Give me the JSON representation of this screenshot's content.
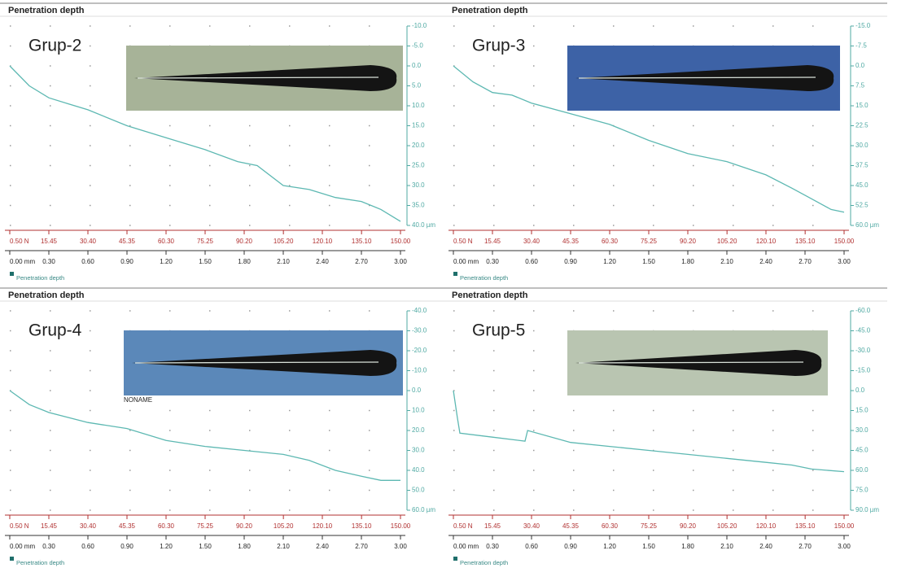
{
  "chart_data": [
    {
      "type": "line",
      "title": "Penetration depth",
      "label": "Grup-2",
      "grid": true,
      "legend": "bottom-left",
      "xlim": [
        0,
        3
      ],
      "xticks": [
        {
          "value": 0,
          "label": "0.00 mm"
        },
        {
          "value": 0.3,
          "label": "0.30"
        },
        {
          "value": 0.6,
          "label": "0.60"
        },
        {
          "value": 0.9,
          "label": "0.90"
        },
        {
          "value": 1.2,
          "label": "1.20"
        },
        {
          "value": 1.5,
          "label": "1.50"
        },
        {
          "value": 1.8,
          "label": "1.80"
        },
        {
          "value": 2.1,
          "label": "2.10"
        },
        {
          "value": 2.4,
          "label": "2.40"
        },
        {
          "value": 2.7,
          "label": "2.70"
        },
        {
          "value": 3,
          "label": "3.00"
        }
      ],
      "x2lim": [
        0.5,
        150
      ],
      "x2ticks": [
        {
          "value": 0.5,
          "label": "0.50 N"
        },
        15.45,
        {
          "value": 30.4,
          "label": "30.40"
        },
        45.35,
        {
          "value": 60.3,
          "label": "60.30"
        },
        75.25,
        {
          "value": 90.2,
          "label": "90.20"
        },
        {
          "value": 105.2,
          "label": "105.20"
        },
        {
          "value": 120.1,
          "label": "120.10"
        },
        {
          "value": 135.1,
          "label": "135.10"
        },
        {
          "value": 150,
          "label": "150.00"
        }
      ],
      "ylim": [
        40,
        -10
      ],
      "yticks": [
        {
          "value": -10,
          "label": "-10.0"
        },
        {
          "value": -5,
          "label": "-5.0"
        },
        {
          "value": 0,
          "label": "0.0"
        },
        {
          "value": 5,
          "label": "5.0"
        },
        {
          "value": 10,
          "label": "10.0"
        },
        {
          "value": 15,
          "label": "15.0"
        },
        {
          "value": 20,
          "label": "20.0"
        },
        {
          "value": 25,
          "label": "25.0"
        },
        {
          "value": 30,
          "label": "30.0"
        },
        {
          "value": 35,
          "label": "35.0"
        },
        {
          "value": 40,
          "label": "40.0 µm"
        }
      ],
      "series": [
        {
          "name": "Penetration depth",
          "color": "#5db8b2",
          "x": [
            0,
            0.15,
            0.3,
            0.45,
            0.6,
            0.9,
            1.2,
            1.5,
            1.75,
            1.9,
            2.1,
            2.3,
            2.5,
            2.7,
            2.85,
            3.0
          ],
          "values": [
            0,
            5,
            8,
            9.5,
            11,
            15,
            18,
            21,
            24,
            25,
            30,
            31,
            33,
            34,
            36,
            39
          ]
        }
      ]
    },
    {
      "type": "line",
      "title": "Penetration depth",
      "label": "Grup-3",
      "grid": true,
      "legend": "bottom-left",
      "xlim": [
        0,
        3
      ],
      "xticks": [
        {
          "value": 0,
          "label": "0.00 mm"
        },
        {
          "value": 0.3,
          "label": "0.30"
        },
        {
          "value": 0.6,
          "label": "0.60"
        },
        {
          "value": 0.9,
          "label": "0.90"
        },
        {
          "value": 1.2,
          "label": "1.20"
        },
        {
          "value": 1.5,
          "label": "1.50"
        },
        {
          "value": 1.8,
          "label": "1.80"
        },
        {
          "value": 2.1,
          "label": "2.10"
        },
        {
          "value": 2.4,
          "label": "2.40"
        },
        {
          "value": 2.7,
          "label": "2.70"
        },
        {
          "value": 3,
          "label": "3.00"
        }
      ],
      "x2lim": [
        0.5,
        150
      ],
      "x2ticks": [
        {
          "value": 0.5,
          "label": "0.50 N"
        },
        15.45,
        {
          "value": 30.4,
          "label": "30.40"
        },
        45.35,
        {
          "value": 60.3,
          "label": "60.30"
        },
        75.25,
        {
          "value": 90.2,
          "label": "90.20"
        },
        {
          "value": 105.2,
          "label": "105.20"
        },
        {
          "value": 120.1,
          "label": "120.10"
        },
        {
          "value": 135.1,
          "label": "135.10"
        },
        {
          "value": 150,
          "label": "150.00"
        }
      ],
      "ylim": [
        60,
        -15
      ],
      "yticks": [
        {
          "value": -15,
          "label": "-15.0"
        },
        -7.5,
        {
          "value": 0,
          "label": "0.0"
        },
        7.5,
        {
          "value": 15,
          "label": "15.0"
        },
        22.5,
        {
          "value": 30,
          "label": "30.0"
        },
        37.5,
        {
          "value": 45,
          "label": "45.0"
        },
        52.5,
        {
          "value": 60,
          "label": "60.0 µm"
        }
      ],
      "series": [
        {
          "name": "Penetration depth",
          "color": "#5db8b2",
          "x": [
            0,
            0.15,
            0.3,
            0.45,
            0.6,
            0.9,
            1.2,
            1.5,
            1.8,
            2.1,
            2.4,
            2.6,
            2.75,
            2.9,
            3.0
          ],
          "values": [
            0,
            6,
            10,
            11,
            14,
            18,
            22,
            28,
            33,
            36,
            41,
            46,
            50,
            54,
            55
          ]
        }
      ]
    },
    {
      "type": "line",
      "title": "Penetration depth",
      "label": "Grup-4",
      "image_caption": "NONAME",
      "grid": true,
      "legend": "bottom-left",
      "xlim": [
        0,
        3
      ],
      "xticks": [
        {
          "value": 0,
          "label": "0.00 mm"
        },
        {
          "value": 0.3,
          "label": "0.30"
        },
        {
          "value": 0.6,
          "label": "0.60"
        },
        {
          "value": 0.9,
          "label": "0.90"
        },
        {
          "value": 1.2,
          "label": "1.20"
        },
        {
          "value": 1.5,
          "label": "1.50"
        },
        {
          "value": 1.8,
          "label": "1.80"
        },
        {
          "value": 2.1,
          "label": "2.10"
        },
        {
          "value": 2.4,
          "label": "2.40"
        },
        {
          "value": 2.7,
          "label": "2.70"
        },
        {
          "value": 3,
          "label": "3.00"
        }
      ],
      "x2lim": [
        0.5,
        150
      ],
      "x2ticks": [
        {
          "value": 0.5,
          "label": "0.50 N"
        },
        15.45,
        {
          "value": 30.4,
          "label": "30.40"
        },
        45.35,
        {
          "value": 60.3,
          "label": "60.30"
        },
        75.25,
        {
          "value": 90.2,
          "label": "90.20"
        },
        {
          "value": 105.2,
          "label": "105.20"
        },
        {
          "value": 120.1,
          "label": "120.10"
        },
        {
          "value": 135.1,
          "label": "135.10"
        },
        {
          "value": 150,
          "label": "150.00"
        }
      ],
      "ylim": [
        60,
        -40
      ],
      "yticks": [
        {
          "value": -40,
          "label": "-40.0"
        },
        {
          "value": -30,
          "label": "-30.0"
        },
        {
          "value": -20,
          "label": "-20.0"
        },
        {
          "value": -10,
          "label": "-10.0"
        },
        {
          "value": 0,
          "label": "0.0"
        },
        {
          "value": 10,
          "label": "10.0"
        },
        {
          "value": 20,
          "label": "20.0"
        },
        {
          "value": 30,
          "label": "30.0"
        },
        {
          "value": 40,
          "label": "40.0"
        },
        {
          "value": 50,
          "label": "50.0"
        },
        {
          "value": 60,
          "label": "60.0 µm"
        }
      ],
      "series": [
        {
          "name": "Penetration depth",
          "color": "#5db8b2",
          "x": [
            0,
            0.15,
            0.3,
            0.6,
            0.9,
            1.2,
            1.5,
            1.8,
            2.1,
            2.3,
            2.5,
            2.7,
            2.85,
            3.0
          ],
          "values": [
            0,
            7,
            11,
            16,
            19,
            25,
            28,
            30,
            32,
            35,
            40,
            43,
            45,
            45
          ]
        }
      ]
    },
    {
      "type": "line",
      "title": "Penetration depth",
      "label": "Grup-5",
      "grid": true,
      "legend": "bottom-left",
      "xlim": [
        0,
        3
      ],
      "xticks": [
        {
          "value": 0,
          "label": "0.00 mm"
        },
        {
          "value": 0.3,
          "label": "0.30"
        },
        {
          "value": 0.6,
          "label": "0.60"
        },
        {
          "value": 0.9,
          "label": "0.90"
        },
        {
          "value": 1.2,
          "label": "1.20"
        },
        {
          "value": 1.5,
          "label": "1.50"
        },
        {
          "value": 1.8,
          "label": "1.80"
        },
        {
          "value": 2.1,
          "label": "2.10"
        },
        {
          "value": 2.4,
          "label": "2.40"
        },
        {
          "value": 2.7,
          "label": "2.70"
        },
        {
          "value": 3,
          "label": "3.00"
        }
      ],
      "x2lim": [
        0.5,
        150
      ],
      "x2ticks": [
        {
          "value": 0.5,
          "label": "0.50 N"
        },
        15.45,
        {
          "value": 30.4,
          "label": "30.40"
        },
        45.35,
        {
          "value": 60.3,
          "label": "60.30"
        },
        75.25,
        {
          "value": 90.2,
          "label": "90.20"
        },
        {
          "value": 105.2,
          "label": "105.20"
        },
        {
          "value": 120.1,
          "label": "120.10"
        },
        {
          "value": 135.1,
          "label": "135.10"
        },
        {
          "value": 150,
          "label": "150.00"
        }
      ],
      "ylim": [
        90,
        -60
      ],
      "yticks": [
        {
          "value": -60,
          "label": "-60.0"
        },
        {
          "value": -45,
          "label": "-45.0"
        },
        {
          "value": -30,
          "label": "-30.0"
        },
        {
          "value": -15,
          "label": "-15.0"
        },
        {
          "value": 0,
          "label": "0.0"
        },
        {
          "value": 15,
          "label": "15.0"
        },
        {
          "value": 30,
          "label": "30.0"
        },
        {
          "value": 45,
          "label": "45.0"
        },
        {
          "value": 60,
          "label": "60.0"
        },
        {
          "value": 75,
          "label": "75.0"
        },
        {
          "value": 90,
          "label": "90.0 µm"
        }
      ],
      "series": [
        {
          "name": "Penetration depth",
          "color": "#5db8b2",
          "x": [
            0,
            0.03,
            0.05,
            0.3,
            0.55,
            0.57,
            0.9,
            1.2,
            1.5,
            1.8,
            2.1,
            2.4,
            2.6,
            2.75,
            3.0
          ],
          "values": [
            0,
            20,
            32,
            35,
            38,
            30,
            39,
            42,
            45,
            48,
            51,
            54,
            56,
            59,
            61
          ]
        }
      ]
    }
  ]
}
